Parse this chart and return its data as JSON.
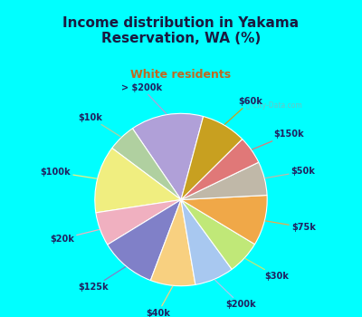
{
  "title": "Income distribution in Yakama\nReservation, WA (%)",
  "subtitle": "White residents",
  "outer_bg": "#00FFFF",
  "chart_bg_top": "#e8f8f0",
  "chart_bg_bot": "#d0eee8",
  "watermark": "City-Data.com",
  "labels": [
    "> $200k",
    "$10k",
    "$100k",
    "$20k",
    "$125k",
    "$40k",
    "$200k",
    "$30k",
    "$75k",
    "$50k",
    "$150k",
    "$60k"
  ],
  "values": [
    13,
    5,
    12,
    6,
    10,
    8,
    7,
    6,
    9,
    6,
    5,
    8
  ],
  "colors": [
    "#b0a0d8",
    "#b0d0a0",
    "#f0ee80",
    "#f0b0c0",
    "#8080c8",
    "#f8d080",
    "#a8c8f0",
    "#c0e878",
    "#f0a848",
    "#c0b8a8",
    "#e07878",
    "#c8a020"
  ],
  "label_color": "#202060",
  "title_color": "#1a1a40",
  "subtitle_color": "#c06820",
  "startangle": 75
}
